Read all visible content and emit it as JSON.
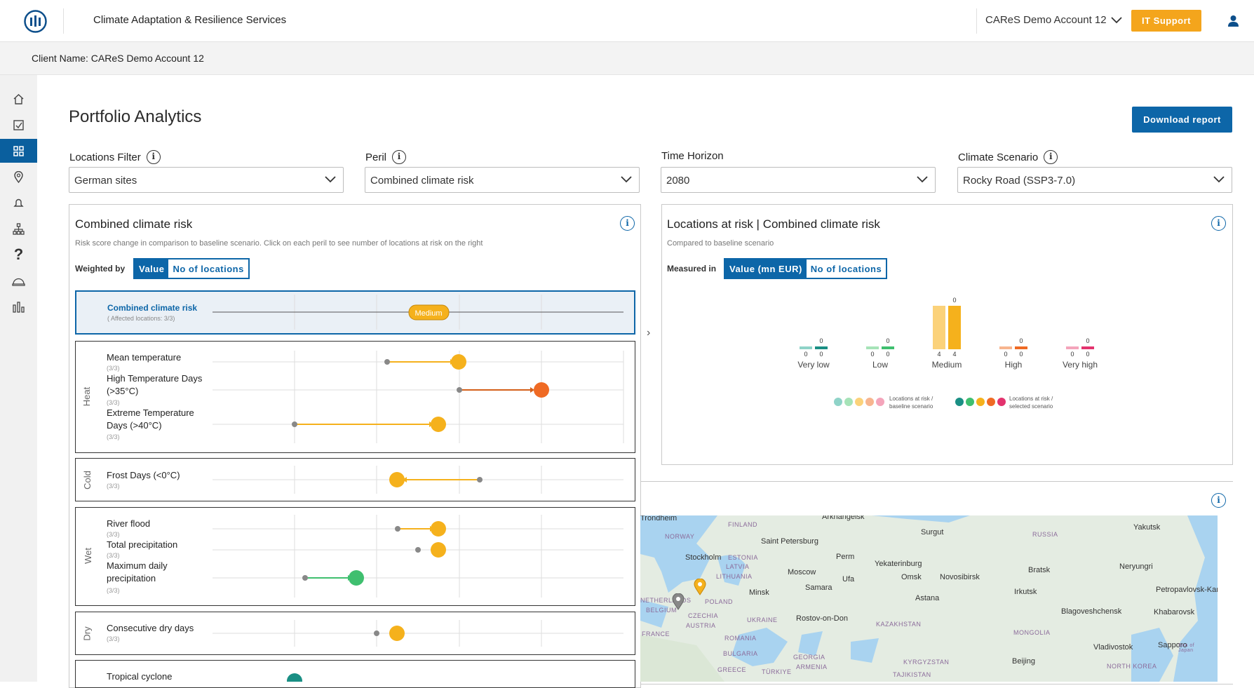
{
  "header": {
    "app_title": "Climate Adaptation & Resilience Services",
    "account": "CAReS Demo Account 12",
    "it_support": "IT Support"
  },
  "client": {
    "label": "Client Name: CAReS Demo Account 12"
  },
  "page": {
    "title": "Portfolio Analytics",
    "download": "Download report"
  },
  "filters": [
    {
      "label": "Locations Filter",
      "value": "German sites"
    },
    {
      "label": "Peril",
      "value": "Combined climate risk"
    },
    {
      "label": "Time Horizon",
      "value": "2080"
    },
    {
      "label": "Climate Scenario",
      "value": "Rocky Road (SSP3-7.0)"
    }
  ],
  "left_panel": {
    "title": "Combined climate risk",
    "subtitle": "Risk score change in comparison to baseline scenario. Click on each peril to see number of locations at risk on the right",
    "weighted_label": "Weighted by",
    "toggle": [
      "Value",
      "No of locations"
    ],
    "combined": {
      "label": "Combined climate risk",
      "count": "( Affected locations: 3/3)",
      "badge": "Medium"
    },
    "categories": {
      "heat": "Heat",
      "cold": "Cold",
      "wet": "Wet",
      "dry": "Dry"
    },
    "items": [
      {
        "label": "Mean temperature",
        "count": "(3/3)"
      },
      {
        "label": "High Temperature Days (>35°C)",
        "count": "(3/3)"
      },
      {
        "label": "Extreme Temperature Days (>40°C)",
        "count": "(3/3)"
      },
      {
        "label": "Frost Days (<0°C)",
        "count": "(3/3)"
      },
      {
        "label": "River flood",
        "count": "(3/3)"
      },
      {
        "label": "Total precipitation",
        "count": "(3/3)"
      },
      {
        "label": "Maximum daily precipitation",
        "count": "(3/3)"
      },
      {
        "label": "Consecutive dry days",
        "count": "(3/3)"
      },
      {
        "label": "Tropical cyclone",
        "count": ""
      }
    ]
  },
  "right_panel": {
    "title": "Locations at risk | Combined climate risk",
    "subtitle": "Compared to baseline scenario",
    "measured_label": "Measured in",
    "toggle": [
      "Value (mn EUR)",
      "No of locations"
    ],
    "legend_baseline": "Locations at risk / baseline scenario",
    "legend_selected": "Locations at risk / selected scenario"
  },
  "chart_data": {
    "type": "bar",
    "categories": [
      "Very low",
      "Low",
      "Medium",
      "High",
      "Very high"
    ],
    "series": [
      {
        "values": [
          0,
          0,
          4,
          0,
          0
        ]
      },
      {
        "values": [
          0,
          0,
          4,
          0,
          0
        ]
      }
    ],
    "top_labels": [
      "0",
      "0",
      "0",
      "0",
      "0"
    ],
    "colors_baseline": [
      "#8fd3c8",
      "#a6e3b8",
      "#fbd27a",
      "#f7b58f",
      "#f4a5bb"
    ],
    "colors_selected": [
      "#1a8f84",
      "#3fbf6f",
      "#f5b11c",
      "#ef6a24",
      "#e3336e"
    ]
  },
  "map": {
    "cities": [
      "Arkhangelsk",
      "Trondheim",
      "Surgut",
      "Yakutsk",
      "Saint Petersburg",
      "Perm",
      "Stockholm",
      "Yekaterinburg",
      "Moscow",
      "Ufa",
      "Omsk",
      "Novosibirsk",
      "Bratsk",
      "Neryungri",
      "Minsk",
      "Samara",
      "Irkutsk",
      "Astana",
      "Rostov-on-Don",
      "Blagoveshchensk",
      "Khabarovsk",
      "Petropavlovsk-Kam",
      "Vladivostok",
      "Sapporo",
      "Beijing"
    ],
    "countries": [
      "FINLAND",
      "RUSSIA",
      "NORWAY",
      "ESTONIA",
      "LATVIA",
      "LITHUANIA",
      "NETHERLANDS",
      "BELGIUM",
      "POLAND",
      "CZECHIA",
      "UKRAINE",
      "AUSTRIA",
      "ROMANIA",
      "FRANCE",
      "KAZAKHSTAN",
      "MONGOLIA",
      "BULGARIA",
      "GEORGIA",
      "ARMENIA",
      "KYRGYZSTAN",
      "TAJIKISTAN",
      "TÜRKIYE",
      "GREECE",
      "NORTH KOREA",
      "Sea of Japan"
    ]
  },
  "colors": {
    "brand": "#0d66a8",
    "accent": "#f4a51c",
    "yellow": "#f5b11c",
    "orange": "#ef6a24",
    "green": "#3fbf6f",
    "teal": "#1a8f84",
    "grey": "#888888"
  }
}
